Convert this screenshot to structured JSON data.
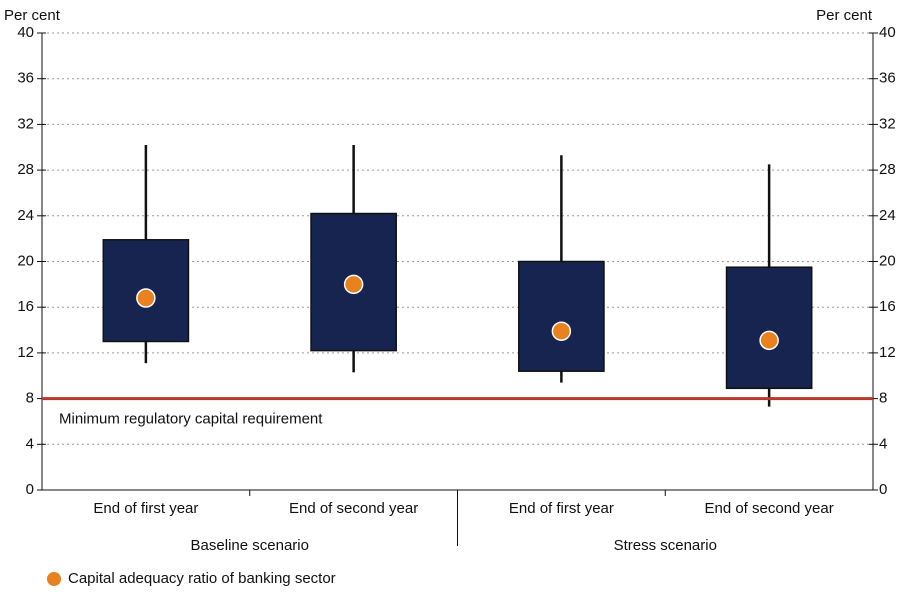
{
  "chart_data": {
    "type": "box",
    "y_label_left": "Per cent",
    "y_label_right": "Per cent",
    "groups": [
      {
        "name": "Baseline scenario",
        "categories": [
          "End of first year",
          "End of second year"
        ]
      },
      {
        "name": "Stress scenario",
        "categories": [
          "End of first year",
          "End of second year"
        ]
      }
    ],
    "boxes": {
      "color": "#16244f",
      "max": [
        30.2,
        30.2,
        29.3,
        28.5
      ],
      "high": [
        21.9,
        24.2,
        20.0,
        19.5
      ],
      "low": [
        13.0,
        12.2,
        10.4,
        8.9
      ],
      "min": [
        11.1,
        10.3,
        9.4,
        7.3
      ]
    },
    "series": [
      {
        "name": "Capital adequacy ratio of banking sector",
        "color": "#e8821e",
        "values": [
          16.8,
          18.0,
          13.9,
          13.1
        ]
      }
    ],
    "reference_line": {
      "value": 8,
      "label": "Minimum regulatory capital requirement",
      "color": "#b5382c"
    },
    "ylim": [
      0,
      40
    ],
    "yticks": [
      0,
      4,
      8,
      12,
      16,
      20,
      24,
      28,
      32,
      36,
      40
    ],
    "grid": true
  }
}
